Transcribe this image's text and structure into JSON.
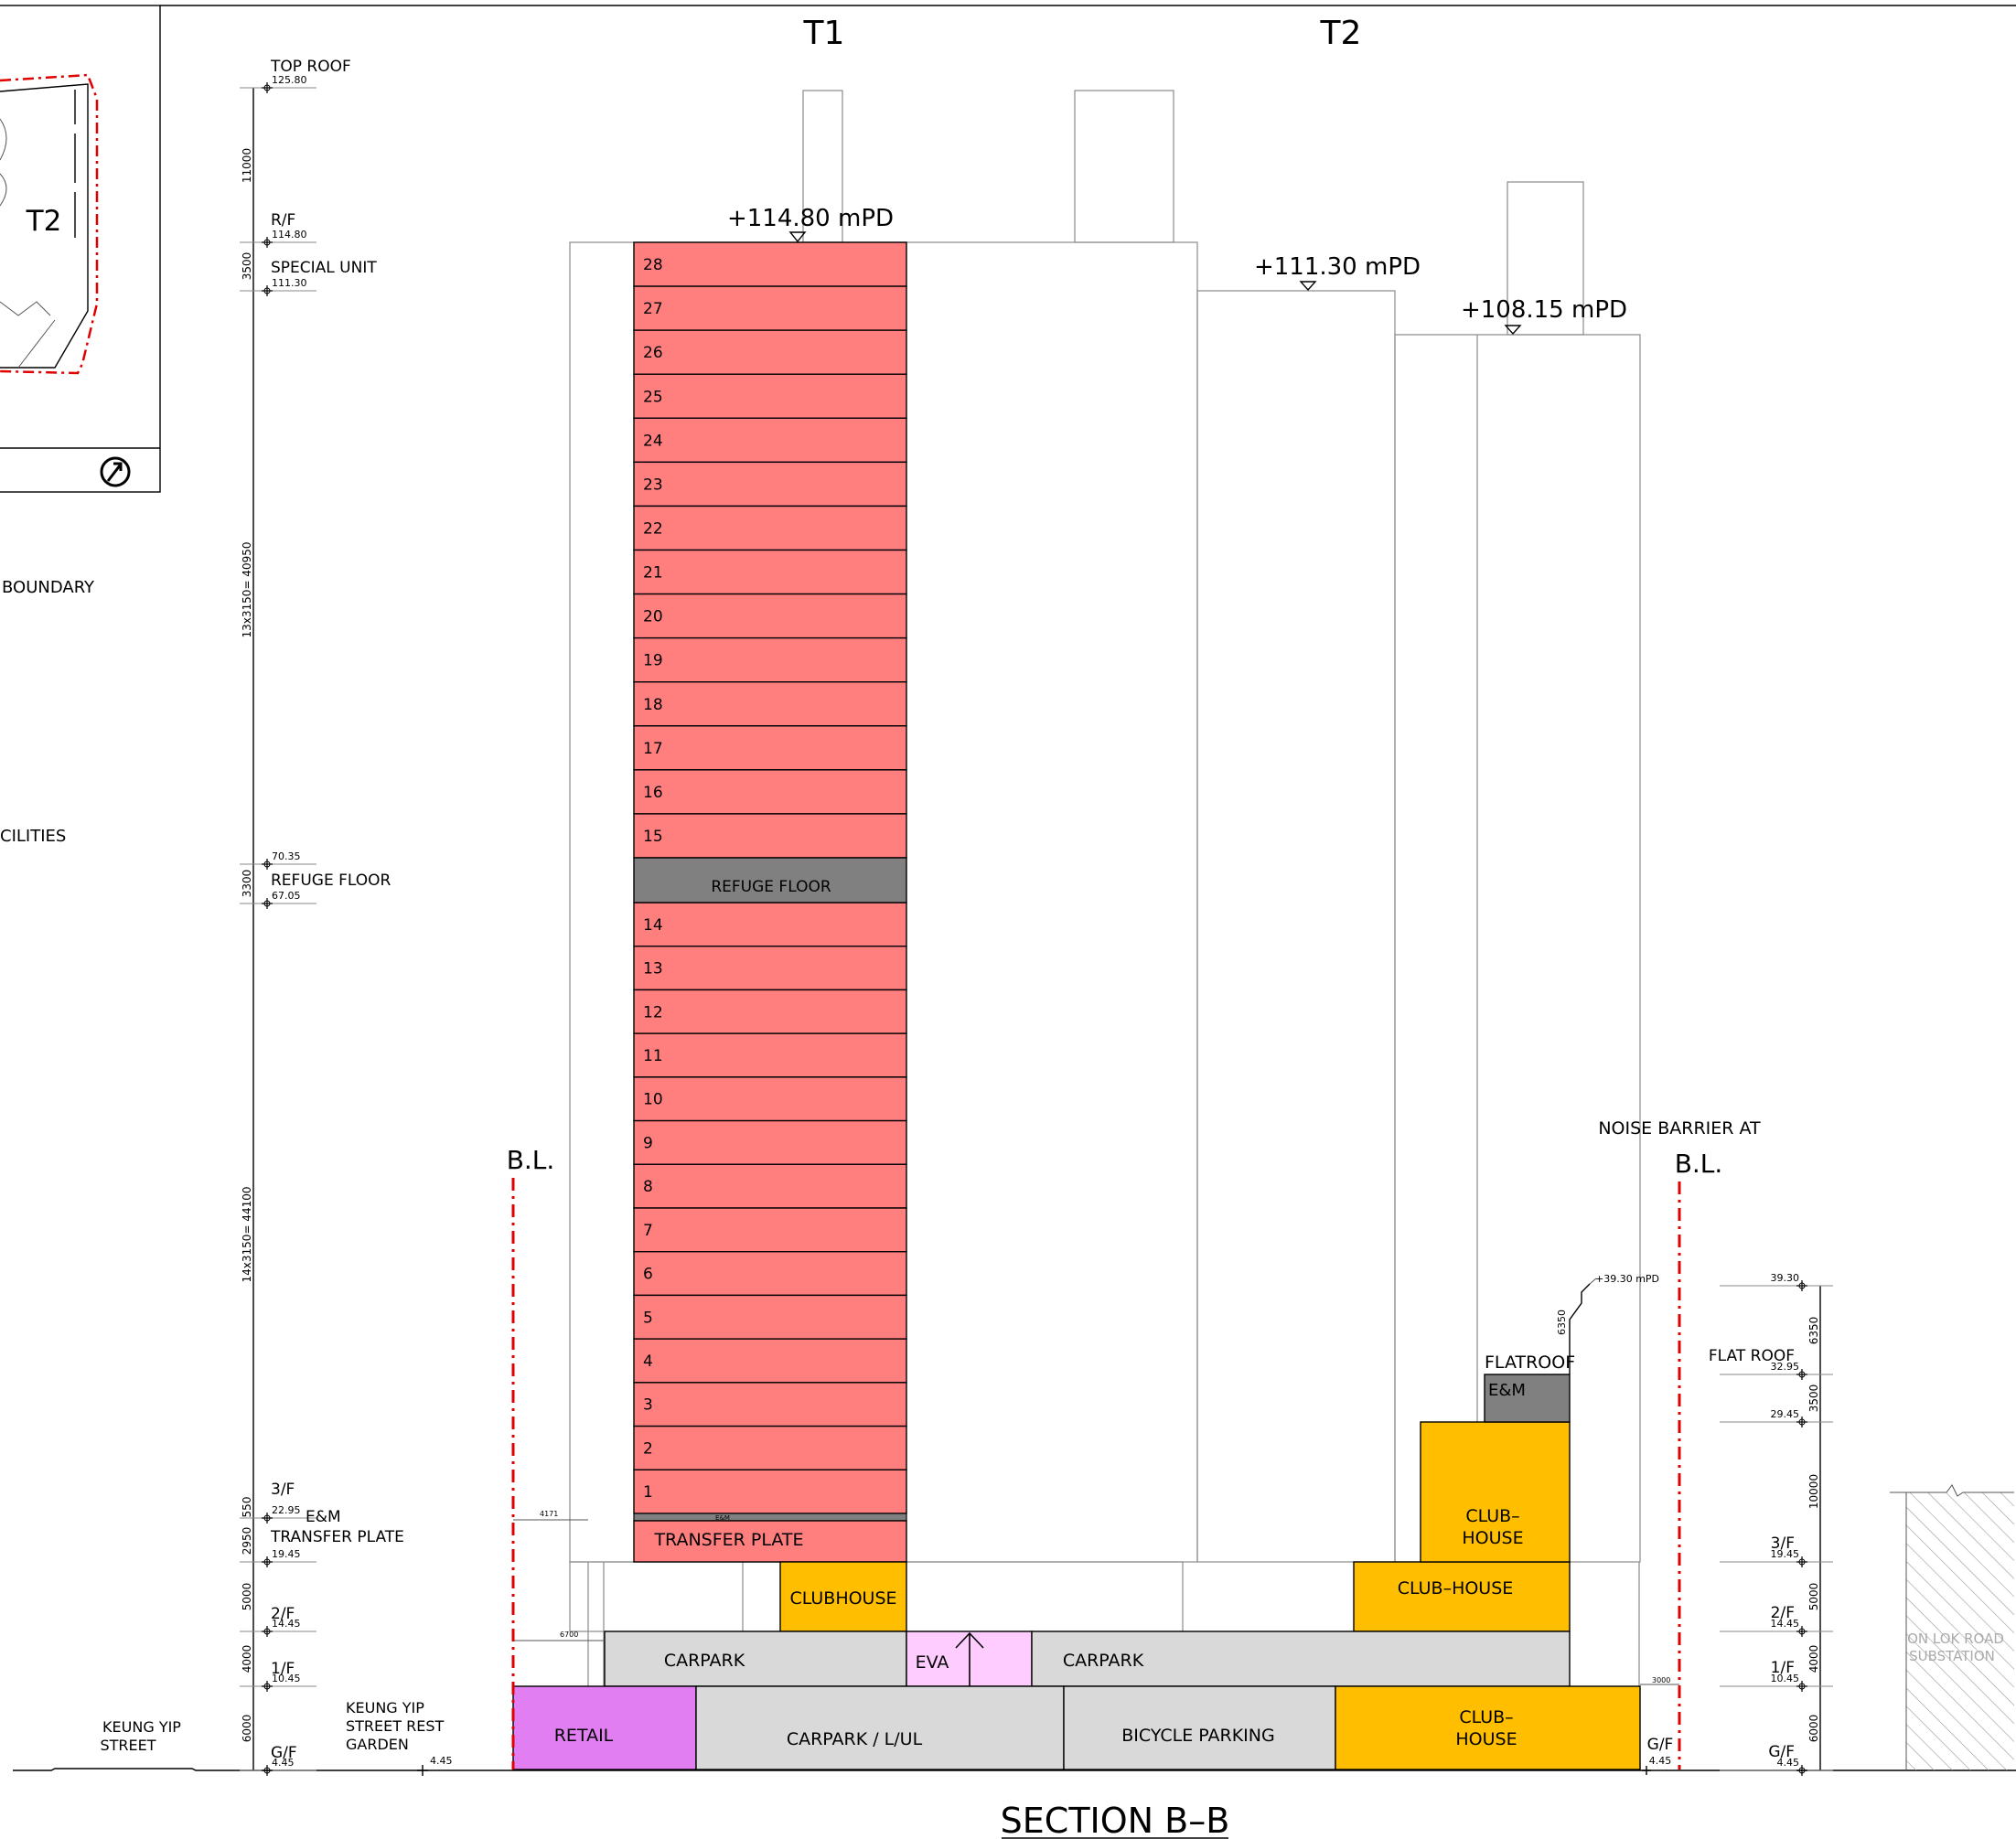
{
  "title": "SECTION B–B",
  "towers": {
    "t1": "T1",
    "t2": "T2"
  },
  "keyplan": {
    "tower_label": "T2",
    "north_icon": "north-arrow-icon"
  },
  "legend_fragments": {
    "boundary": "BOUNDARY",
    "facilities": "CILITIES"
  },
  "levels_left": [
    {
      "name": "TOP ROOF",
      "value": "125.80"
    },
    {
      "name": "R/F",
      "value": "114.80"
    },
    {
      "name": "SPECIAL UNIT",
      "value": "111.30"
    },
    {
      "name": "",
      "value": "70.35"
    },
    {
      "name": "REFUGE FLOOR",
      "value": "67.05"
    },
    {
      "name": "3/F",
      "value": "22.95"
    },
    {
      "name": "E&M",
      "value": ""
    },
    {
      "name": "TRANSFER PLATE",
      "value": "19.45"
    },
    {
      "name": "2/F",
      "value": "14.45"
    },
    {
      "name": "1/F",
      "value": "10.45"
    },
    {
      "name": "G/F",
      "value": "4.45"
    }
  ],
  "dims_left": [
    "11000",
    "3500",
    "13x3150= 40950",
    "3300",
    "14x3150= 44100",
    "550",
    "2950",
    "5000",
    "4000",
    "6000"
  ],
  "heights": {
    "t1": "+114.80 mPD",
    "t2a": "+111.30 mPD",
    "t2b": "+108.15 mPD",
    "noise_top": "+39.30 mPD"
  },
  "floors": [
    "28",
    "27",
    "26",
    "25",
    "24",
    "23",
    "22",
    "21",
    "20",
    "19",
    "18",
    "17",
    "16",
    "15",
    "14",
    "13",
    "12",
    "11",
    "10",
    "9",
    "8",
    "7",
    "6",
    "5",
    "4",
    "3",
    "2",
    "1"
  ],
  "labels": {
    "refuge": "REFUGE FLOOR",
    "transfer": "TRANSFER PLATE",
    "em_small": "E&M",
    "clubhouse": "CLUBHOUSE",
    "club_house": "CLUB–HOUSE",
    "club": "CLUB–",
    "house": "HOUSE",
    "carpark": "CARPARK",
    "eva": "EVA",
    "retail": "RETAIL",
    "carpark_lul": "CARPARK / L/UL",
    "bicycle": "BICYCLE PARKING",
    "flatroof": "FLATROOF",
    "em": "E&M",
    "bl": "B.L.",
    "noise": "NOISE BARRIER AT",
    "street": [
      "KEUNG YIP",
      "STREET"
    ],
    "garden": [
      "KEUNG YIP",
      "STREET REST",
      "GARDEN"
    ],
    "substation": [
      "ON LOK ROAD",
      "SUBSTATION"
    ],
    "gf_mid": "G/F",
    "gf_mid_val": "4.45",
    "garden_val": "4.45"
  },
  "levels_right": [
    {
      "name": "",
      "value": "39.30"
    },
    {
      "name": "FLAT ROOF",
      "value": "32.95"
    },
    {
      "name": "",
      "value": "29.45"
    },
    {
      "name": "3/F",
      "value": "19.45"
    },
    {
      "name": "2/F",
      "value": "14.45"
    },
    {
      "name": "1/F",
      "value": "10.45"
    },
    {
      "name": "G/F",
      "value": "4.45"
    }
  ],
  "dims_right": [
    "6350",
    "3500",
    "10000",
    "5000",
    "4000",
    "6000"
  ],
  "dims_small": {
    "a": "4171",
    "b": "6700",
    "c": "3000",
    "d": "6350"
  },
  "colors": {
    "residential": "#ff7f7f",
    "refuge": "#808080",
    "clubhouse": "#ffbf00",
    "carpark": "#d9d9d9",
    "retail": "#e17ff2",
    "eva": "#ffccff",
    "boundary_line": "#e00000"
  }
}
